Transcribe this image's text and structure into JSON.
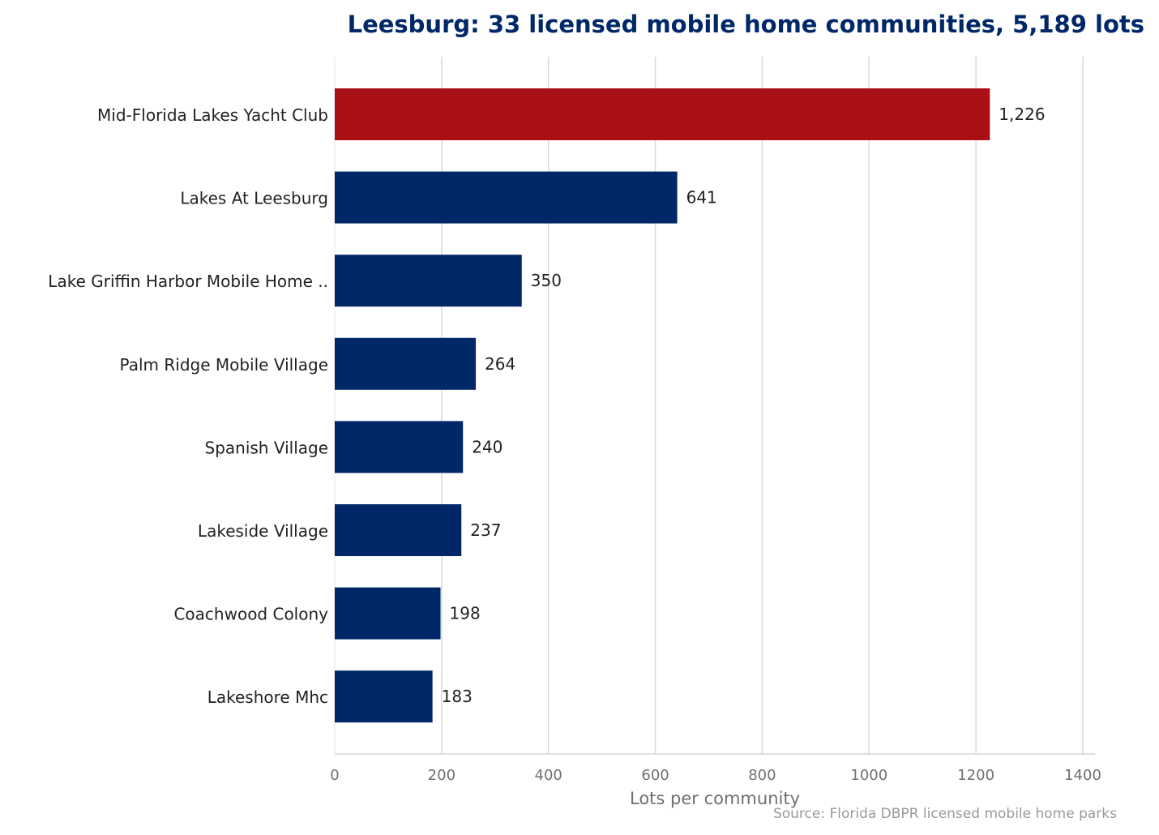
{
  "chart_data": {
    "type": "bar",
    "orientation": "horizontal",
    "title": "Leesburg: 33 licensed mobile home communities, 5,189 lots",
    "xlabel": "Lots per community",
    "ylabel": "",
    "source": "Source: Florida DBPR licensed mobile home parks",
    "categories": [
      "Mid-Florida Lakes Yacht Club",
      "Lakes At Leesburg",
      "Lake Griffin Harbor Mobile Home ..",
      "Palm Ridge Mobile Village",
      "Spanish Village",
      "Lakeside Village",
      "Coachwood Colony",
      "Lakeshore Mhc"
    ],
    "values": [
      1226,
      641,
      350,
      264,
      240,
      237,
      198,
      183
    ],
    "value_labels": [
      "1,226",
      "641",
      "350",
      "264",
      "240",
      "237",
      "198",
      "183"
    ],
    "highlight_index": 0,
    "colors": {
      "bar": "#002868",
      "highlight": "#A81016",
      "grid": "#d9d9d9"
    },
    "xlim": [
      0,
      1420
    ],
    "xticks": [
      0,
      200,
      400,
      600,
      800,
      1000,
      1200,
      1400
    ],
    "grid": true,
    "legend": "none"
  }
}
